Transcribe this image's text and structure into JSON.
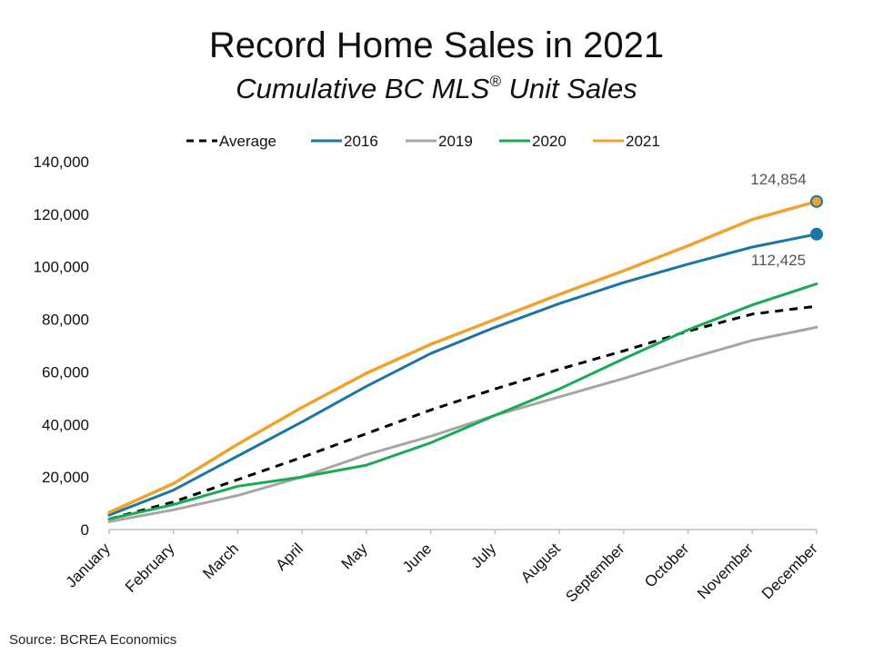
{
  "title": "Record Home Sales in 2021",
  "subtitle_main": "Cumulative BC MLS",
  "subtitle_reg": "®",
  "subtitle_end": " Unit Sales",
  "source": "Source: BCREA Economics",
  "chart_data": {
    "type": "line",
    "title": "Record Home Sales in 2021",
    "subtitle": "Cumulative BC MLS® Unit Sales",
    "xlabel": "",
    "ylabel": "",
    "ylim": [
      0,
      140000
    ],
    "yticks": [
      0,
      20000,
      40000,
      60000,
      80000,
      100000,
      120000,
      140000
    ],
    "ytick_labels": [
      "0",
      "20,000",
      "40,000",
      "60,000",
      "80,000",
      "100,000",
      "120,000",
      "140,000"
    ],
    "grid": false,
    "legend_position": "top",
    "categories": [
      "January",
      "February",
      "March",
      "April",
      "May",
      "June",
      "July",
      "August",
      "September",
      "October",
      "November",
      "December"
    ],
    "series": [
      {
        "name": "Average",
        "color": "#000000",
        "dashed": true,
        "values": [
          4000,
          10500,
          19000,
          27500,
          36500,
          45500,
          53500,
          61000,
          68000,
          75500,
          82000,
          85000
        ]
      },
      {
        "name": "2016",
        "color": "#1b75a6",
        "dashed": false,
        "values": [
          5500,
          15000,
          28000,
          41000,
          54500,
          67000,
          77000,
          86000,
          94000,
          101000,
          107500,
          112425
        ]
      },
      {
        "name": "2019",
        "color": "#a6a6a6",
        "dashed": false,
        "values": [
          3000,
          7500,
          13000,
          20000,
          28500,
          35500,
          43500,
          50500,
          57500,
          65000,
          72000,
          77000
        ]
      },
      {
        "name": "2020",
        "color": "#1aaa55",
        "dashed": false,
        "values": [
          4000,
          9500,
          16500,
          20000,
          24500,
          33000,
          43500,
          53500,
          65000,
          76000,
          85500,
          93500
        ]
      },
      {
        "name": "2021",
        "color": "#f0a22e",
        "dashed": false,
        "values": [
          6500,
          17500,
          32500,
          46500,
          59500,
          70500,
          80000,
          89500,
          98500,
          108000,
          118000,
          124854
        ]
      }
    ],
    "annotations": [
      {
        "series": "2021",
        "category": "December",
        "value": 124854,
        "label": "124,854",
        "marker_fill": "#f0a22e",
        "marker_edge": "#1b75a6"
      },
      {
        "series": "2016",
        "category": "December",
        "value": 112425,
        "label": "112,425",
        "marker_fill": "#1b75a6",
        "marker_edge": "#1b75a6"
      }
    ]
  }
}
